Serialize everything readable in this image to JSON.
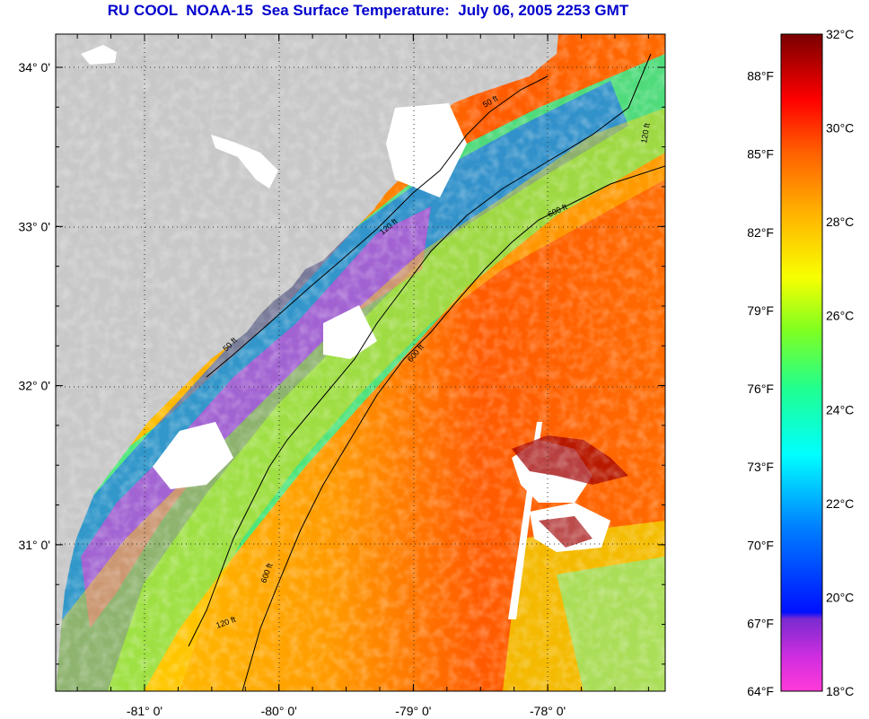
{
  "title": "RU COOL  NOAA-15  Sea Surface Temperature:  July 06, 2005 2253 GMT",
  "map": {
    "lat_labels": [
      "34° 0'",
      "33° 0'",
      "32° 0'",
      "31° 0'"
    ],
    "lon_labels": [
      "-81° 0'",
      "-80° 0'",
      "-79° 0'",
      "-78° 0'"
    ],
    "lat_values": [
      34,
      33,
      32,
      31
    ],
    "lon_values": [
      -81,
      -80,
      -79,
      -78
    ],
    "grid": true,
    "land_color": "#c8c8c8",
    "cloud_color": "#ffffff",
    "isobath_labels": [
      "50 ft",
      "120 ft",
      "600 ft",
      "50 ft",
      "120 ft",
      "600 ft",
      "120 ft",
      "600 ft"
    ]
  },
  "colorbar": {
    "f_labels": [
      "88°F",
      "85°F",
      "82°F",
      "79°F",
      "76°F",
      "73°F",
      "70°F",
      "67°F",
      "64°F"
    ],
    "c_labels": [
      "32°C",
      "30°C",
      "28°C",
      "26°C",
      "24°C",
      "22°C",
      "20°C",
      "18°C"
    ],
    "c_min": 18,
    "c_max": 32,
    "f_values": [
      88,
      85,
      82,
      79,
      76,
      73,
      70,
      67,
      64
    ],
    "c_values": [
      32,
      30,
      28,
      26,
      24,
      22,
      20,
      18
    ],
    "colors": [
      "#ff3ad8",
      "#8a2bd6",
      "#0010ff",
      "#00b0ff",
      "#00ffe0",
      "#40ff60",
      "#f0ff00",
      "#ffb000",
      "#ff6000",
      "#ff0000",
      "#7a0000"
    ]
  }
}
